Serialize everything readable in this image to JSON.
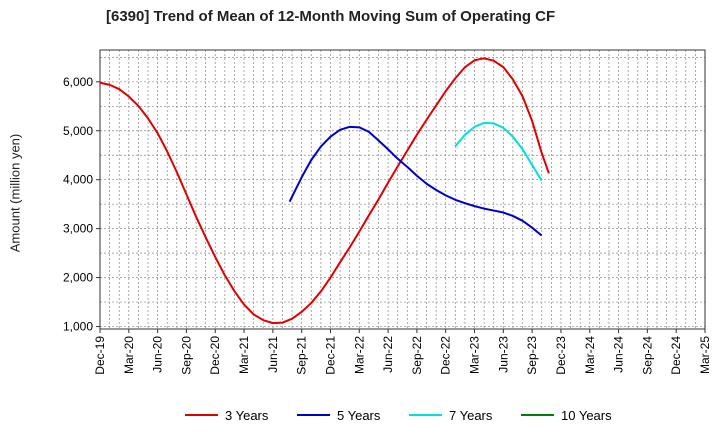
{
  "chart_data": {
    "type": "line",
    "title": "[6390]  Trend of Mean of 12-Month Moving Sum of Operating CF",
    "xlabel": "",
    "ylabel": "Amount (million yen)",
    "ylim": [
      950,
      6650
    ],
    "yticks": [
      1000,
      2000,
      3000,
      4000,
      5000,
      6000
    ],
    "ytick_labels": [
      "1,000",
      "2,000",
      "3,000",
      "4,000",
      "5,000",
      "6,000"
    ],
    "x_categories": [
      "Dec-19",
      "Mar-20",
      "Jun-20",
      "Sep-20",
      "Dec-20",
      "Mar-21",
      "Jun-21",
      "Sep-21",
      "Dec-21",
      "Mar-22",
      "Jun-22",
      "Sep-22",
      "Dec-22",
      "Mar-23",
      "Jun-23",
      "Sep-23",
      "Dec-23",
      "Mar-24",
      "Jun-24",
      "Sep-24",
      "Dec-24",
      "Mar-25"
    ],
    "grid": true,
    "legend_position": "bottom",
    "series": [
      {
        "name": "3 Years",
        "color": "#e00000",
        "points": [
          [
            0,
            5980
          ],
          [
            0.33,
            5940
          ],
          [
            0.67,
            5850
          ],
          [
            1,
            5700
          ],
          [
            1.33,
            5510
          ],
          [
            1.67,
            5250
          ],
          [
            2,
            4950
          ],
          [
            2.33,
            4580
          ],
          [
            2.67,
            4150
          ],
          [
            3,
            3700
          ],
          [
            3.33,
            3250
          ],
          [
            3.67,
            2820
          ],
          [
            4,
            2420
          ],
          [
            4.33,
            2050
          ],
          [
            4.67,
            1720
          ],
          [
            5,
            1450
          ],
          [
            5.33,
            1250
          ],
          [
            5.67,
            1130
          ],
          [
            6,
            1070
          ],
          [
            6.33,
            1080
          ],
          [
            6.67,
            1160
          ],
          [
            7,
            1300
          ],
          [
            7.33,
            1480
          ],
          [
            7.67,
            1720
          ],
          [
            8,
            2000
          ],
          [
            8.33,
            2310
          ],
          [
            8.67,
            2620
          ],
          [
            9,
            2940
          ],
          [
            9.33,
            3270
          ],
          [
            9.67,
            3600
          ],
          [
            10,
            3940
          ],
          [
            10.33,
            4270
          ],
          [
            10.67,
            4600
          ],
          [
            11,
            4920
          ],
          [
            11.33,
            5220
          ],
          [
            11.67,
            5520
          ],
          [
            12,
            5810
          ],
          [
            12.33,
            6070
          ],
          [
            12.67,
            6300
          ],
          [
            13,
            6440
          ],
          [
            13.33,
            6480
          ],
          [
            13.67,
            6430
          ],
          [
            14,
            6300
          ],
          [
            14.33,
            6050
          ],
          [
            14.67,
            5700
          ],
          [
            15,
            5200
          ],
          [
            15.33,
            4550
          ],
          [
            15.58,
            4130
          ]
        ]
      },
      {
        "name": "5 Years",
        "color": "#0000cc",
        "points": [
          [
            6.58,
            3550
          ],
          [
            7,
            4050
          ],
          [
            7.33,
            4400
          ],
          [
            7.67,
            4680
          ],
          [
            8,
            4880
          ],
          [
            8.33,
            5020
          ],
          [
            8.67,
            5080
          ],
          [
            9,
            5070
          ],
          [
            9.33,
            4980
          ],
          [
            9.67,
            4800
          ],
          [
            10,
            4620
          ],
          [
            10.33,
            4430
          ],
          [
            10.67,
            4260
          ],
          [
            11,
            4080
          ],
          [
            11.33,
            3920
          ],
          [
            11.67,
            3790
          ],
          [
            12,
            3680
          ],
          [
            12.33,
            3590
          ],
          [
            12.67,
            3520
          ],
          [
            13,
            3460
          ],
          [
            13.33,
            3410
          ],
          [
            13.67,
            3370
          ],
          [
            14,
            3330
          ],
          [
            14.33,
            3260
          ],
          [
            14.67,
            3160
          ],
          [
            15,
            3020
          ],
          [
            15.33,
            2860
          ]
        ]
      },
      {
        "name": "7 Years",
        "color": "#00e0e0",
        "points": [
          [
            12.33,
            4680
          ],
          [
            12.67,
            4920
          ],
          [
            13,
            5080
          ],
          [
            13.33,
            5160
          ],
          [
            13.67,
            5150
          ],
          [
            14,
            5060
          ],
          [
            14.33,
            4880
          ],
          [
            14.67,
            4620
          ],
          [
            15,
            4300
          ],
          [
            15.33,
            3980
          ]
        ]
      },
      {
        "name": "10 Years",
        "color": "#008000",
        "points": []
      }
    ]
  }
}
